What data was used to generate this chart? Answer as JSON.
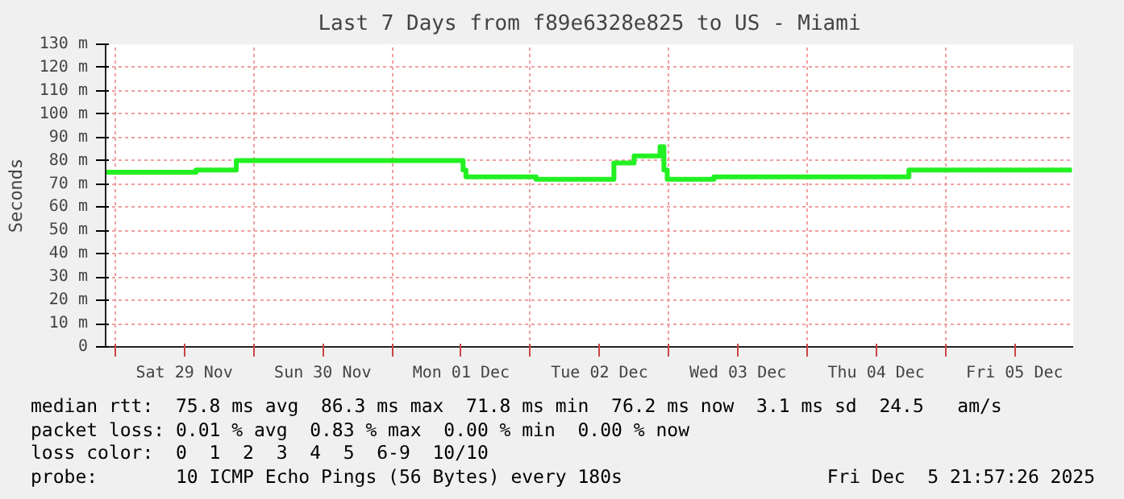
{
  "chart_data": {
    "type": "step",
    "title": "Last 7 Days from f89e6328e825 to US - Miami",
    "ylabel": "Seconds",
    "x": [
      "2025-11-28T22:20",
      "2025-11-29T14:00",
      "2025-11-29T21:00",
      "2025-12-01T12:20",
      "2025-12-01T12:50",
      "2025-12-02T01:00",
      "2025-12-02T14:30",
      "2025-12-02T18:00",
      "2025-12-02T22:30",
      "2025-12-02T23:10",
      "2025-12-02T23:45",
      "2025-12-03T07:50",
      "2025-12-04T17:40",
      "2025-12-05T21:57"
    ],
    "series": [
      {
        "color": "#22f022",
        "values": [
          75,
          76,
          80,
          76,
          73,
          72,
          79,
          82,
          86,
          76,
          72,
          73,
          76,
          76
        ]
      }
    ],
    "xlim": [
      "2025-11-28T22:20",
      "2025-12-05T22:10"
    ],
    "xticks": [
      {
        "value": "2025-11-29T00:00",
        "label": null
      },
      {
        "value": "2025-11-29T12:00",
        "label": "Sat 29 Nov"
      },
      {
        "value": "2025-11-30T00:00",
        "label": null
      },
      {
        "value": "2025-11-30T12:00",
        "label": "Sun 30 Nov"
      },
      {
        "value": "2025-12-01T00:00",
        "label": null
      },
      {
        "value": "2025-12-01T12:00",
        "label": "Mon 01 Dec"
      },
      {
        "value": "2025-12-02T00:00",
        "label": null
      },
      {
        "value": "2025-12-02T12:00",
        "label": "Tue 02 Dec"
      },
      {
        "value": "2025-12-03T00:00",
        "label": null
      },
      {
        "value": "2025-12-03T12:00",
        "label": "Wed 03 Dec"
      },
      {
        "value": "2025-12-04T00:00",
        "label": null
      },
      {
        "value": "2025-12-04T12:00",
        "label": "Thu 04 Dec"
      },
      {
        "value": "2025-12-05T00:00",
        "label": null
      },
      {
        "value": "2025-12-05T12:00",
        "label": "Fri 05 Dec"
      }
    ],
    "ylim": [
      0,
      130
    ],
    "yticks": [
      0,
      {
        "value": 10,
        "label": "10 m"
      },
      {
        "value": 20,
        "label": "20 m"
      },
      {
        "value": 30,
        "label": "30 m"
      },
      {
        "value": 40,
        "label": "40 m"
      },
      {
        "value": 50,
        "label": "50 m"
      },
      {
        "value": 60,
        "label": "60 m"
      },
      {
        "value": 70,
        "label": "70 m"
      },
      {
        "value": 80,
        "label": "80 m"
      },
      {
        "value": 90,
        "label": "90 m"
      },
      {
        "value": 100,
        "label": "100 m"
      },
      {
        "value": 110,
        "label": "110 m"
      },
      {
        "value": 120,
        "label": "120 m"
      },
      {
        "value": 130,
        "label": "130 m"
      }
    ],
    "grid": true,
    "line_style": "solid",
    "annotations": [
      "median rtt:  75.8 ms avg  86.3 ms max  71.8 ms min  76.2 ms now  3.1 ms sd  24.5   am/s",
      "packet loss: 0.01 % avg  0.83 % max  0.00 % min  0.00 % now",
      "loss color:  0  1  2  3  4  5  6-9  10/10",
      "probe:       10 ICMP Echo Pings (56 Bytes) every 180s",
      "Fri Dec  5 21:57:26 2025"
    ]
  }
}
